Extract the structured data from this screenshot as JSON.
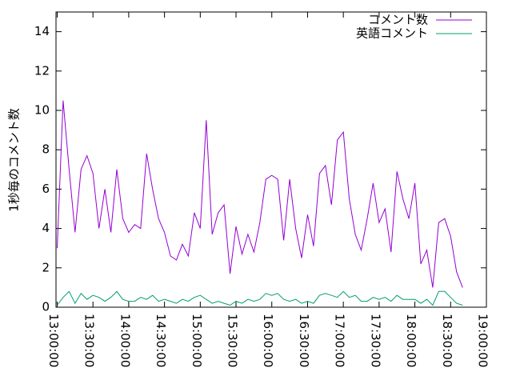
{
  "chart_data": {
    "type": "line",
    "ylabel": "1秒毎のコメント数",
    "x": [
      "13:00:00",
      "13:05:00",
      "13:10:00",
      "13:15:00",
      "13:20:00",
      "13:25:00",
      "13:30:00",
      "13:35:00",
      "13:40:00",
      "13:45:00",
      "13:50:00",
      "13:55:00",
      "14:00:00",
      "14:05:00",
      "14:10:00",
      "14:15:00",
      "14:20:00",
      "14:25:00",
      "14:30:00",
      "14:35:00",
      "14:40:00",
      "14:45:00",
      "14:50:00",
      "14:55:00",
      "15:00:00",
      "15:05:00",
      "15:10:00",
      "15:15:00",
      "15:20:00",
      "15:25:00",
      "15:30:00",
      "15:35:00",
      "15:40:00",
      "15:45:00",
      "15:50:00",
      "15:55:00",
      "16:00:00",
      "16:05:00",
      "16:10:00",
      "16:15:00",
      "16:20:00",
      "16:25:00",
      "16:30:00",
      "16:35:00",
      "16:40:00",
      "16:45:00",
      "16:50:00",
      "16:55:00",
      "17:00:00",
      "17:05:00",
      "17:10:00",
      "17:15:00",
      "17:20:00",
      "17:25:00",
      "17:30:00",
      "17:35:00",
      "17:40:00",
      "17:45:00",
      "17:50:00",
      "17:55:00",
      "18:00:00",
      "18:05:00",
      "18:10:00",
      "18:15:00",
      "18:20:00",
      "18:25:00",
      "18:30:00",
      "18:35:00",
      "18:40:00"
    ],
    "series": [
      {
        "name": "コメント数",
        "color": "#9400d3",
        "values": [
          3.0,
          10.5,
          7,
          3.8,
          7,
          7.7,
          6.8,
          4,
          6,
          3.8,
          7,
          4.5,
          3.8,
          4.2,
          4,
          7.8,
          6,
          4.5,
          3.8,
          2.6,
          2.4,
          3.2,
          2.6,
          4.8,
          4.0,
          9.5,
          3.7,
          4.8,
          5.2,
          1.7,
          4.1,
          2.7,
          3.7,
          2.8,
          4.3,
          6.5,
          6.7,
          6.5,
          3.4,
          6.5,
          4.0,
          2.5,
          4.7,
          3.1,
          6.8,
          7.2,
          5.2,
          8.5,
          8.9,
          5.5,
          3.7,
          2.9,
          4.5,
          6.3,
          4.3,
          5.0,
          2.8,
          6.9,
          5.5,
          4.5,
          6.3,
          2.2,
          2.9,
          1.0,
          4.3,
          4.5,
          3.6,
          1.8,
          1.0
        ]
      },
      {
        "name": "英語コメント",
        "color": "#009e73",
        "values": [
          0.1,
          0.5,
          0.8,
          0.2,
          0.7,
          0.4,
          0.6,
          0.5,
          0.3,
          0.5,
          0.8,
          0.4,
          0.3,
          0.3,
          0.5,
          0.4,
          0.6,
          0.3,
          0.4,
          0.3,
          0.2,
          0.4,
          0.3,
          0.5,
          0.6,
          0.4,
          0.2,
          0.3,
          0.2,
          0.1,
          0.3,
          0.2,
          0.4,
          0.3,
          0.4,
          0.7,
          0.6,
          0.7,
          0.4,
          0.3,
          0.4,
          0.2,
          0.3,
          0.2,
          0.6,
          0.7,
          0.6,
          0.5,
          0.8,
          0.5,
          0.6,
          0.3,
          0.3,
          0.5,
          0.4,
          0.5,
          0.3,
          0.6,
          0.4,
          0.4,
          0.4,
          0.2,
          0.4,
          0.1,
          0.8,
          0.8,
          0.5,
          0.2,
          0.1
        ]
      }
    ],
    "xlim": [
      "12:59:00",
      "19:00:00"
    ],
    "xticks": [
      "13:00:00",
      "13:30:00",
      "14:00:00",
      "14:30:00",
      "15:00:00",
      "15:30:00",
      "16:00:00",
      "16:30:00",
      "17:00:00",
      "17:30:00",
      "18:00:00",
      "18:30:00",
      "19:00:00"
    ],
    "ylim": [
      0,
      15
    ],
    "yticks": [
      0,
      2,
      4,
      6,
      8,
      10,
      12,
      14
    ],
    "legend": "top-right"
  }
}
